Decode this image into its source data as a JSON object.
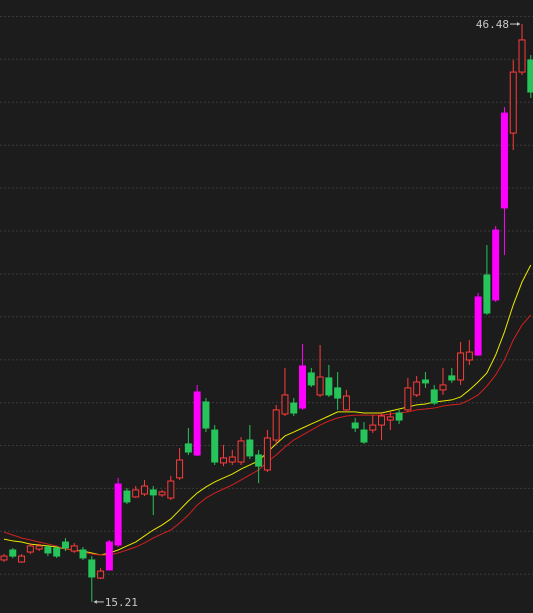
{
  "chart_data": {
    "type": "candlestick",
    "ylim": [
      14.61,
      47.78
    ],
    "hollow_color": "#ff3b3b",
    "open": [
      17.48,
      18.02,
      17.37,
      17.91,
      18.07,
      18.18,
      18.13,
      18.45,
      17.96,
      18.02,
      17.48,
      16.5,
      16.94,
      18.29,
      21.21,
      20.89,
      21.05,
      21.27,
      21.0,
      20.83,
      21.92,
      23.76,
      23.16,
      26.03,
      24.51,
      22.73,
      22.78,
      22.78,
      23.97,
      23.16,
      22.35,
      23.97,
      25.38,
      25.97,
      25.7,
      27.6,
      26.41,
      27.33,
      26.79,
      25.6,
      24.89,
      24.51,
      24.51,
      24.78,
      25.05,
      25.43,
      25.6,
      26.41,
      27.22,
      26.68,
      26.68,
      27.44,
      27.22,
      28.3,
      28.57,
      32.9,
      31.55,
      36.53,
      40.58,
      43.88,
      44.53
    ],
    "high": [
      17.8,
      18.13,
      17.8,
      18.4,
      18.35,
      18.29,
      18.24,
      18.67,
      18.4,
      18.18,
      17.69,
      17.04,
      18.56,
      21.92,
      21.37,
      21.48,
      21.81,
      21.48,
      21.27,
      22.03,
      23.54,
      24.62,
      26.95,
      26.24,
      24.78,
      23.7,
      23.43,
      24.13,
      24.78,
      23.43,
      24.51,
      25.87,
      27.87,
      26.24,
      29.17,
      27.87,
      29.11,
      28.03,
      27.65,
      26.68,
      25.16,
      24.94,
      25.32,
      25.49,
      25.49,
      25.6,
      27.33,
      27.44,
      27.65,
      26.95,
      27.87,
      27.87,
      29.27,
      29.38,
      31.94,
      34.52,
      35.55,
      41.99,
      44.53,
      46.48,
      44.8
    ],
    "low": [
      17.37,
      17.59,
      17.32,
      17.8,
      17.96,
      17.69,
      17.59,
      17.96,
      17.86,
      17.48,
      15.21,
      16.45,
      16.94,
      18.18,
      20.51,
      20.83,
      20.94,
      19.91,
      20.89,
      20.72,
      21.81,
      23.16,
      23.11,
      24.4,
      22.62,
      22.56,
      22.62,
      22.62,
      22.94,
      21.64,
      22.24,
      23.7,
      25.27,
      25.27,
      25.6,
      26.84,
      26.3,
      26.3,
      25.6,
      25.49,
      24.4,
      23.76,
      24.35,
      23.97,
      24.51,
      24.84,
      25.49,
      26.3,
      26.79,
      25.87,
      26.41,
      27.06,
      26.95,
      28.03,
      28.52,
      30.74,
      31.44,
      33.98,
      39.66,
      43.72,
      42.48
    ],
    "close": [
      17.69,
      17.69,
      17.69,
      18.24,
      18.24,
      17.86,
      17.69,
      18.13,
      18.24,
      17.59,
      16.56,
      16.88,
      18.45,
      21.59,
      20.62,
      21.27,
      21.48,
      21.0,
      21.16,
      21.75,
      22.89,
      23.32,
      26.57,
      24.62,
      22.78,
      23.0,
      23.05,
      23.92,
      23.11,
      22.56,
      24.08,
      25.6,
      26.41,
      25.43,
      27.98,
      26.95,
      27.38,
      26.41,
      26.24,
      26.35,
      24.62,
      23.86,
      24.78,
      25.27,
      25.22,
      25.05,
      26.79,
      27.11,
      27.06,
      25.97,
      26.95,
      27.22,
      28.68,
      28.73,
      31.71,
      30.84,
      35.33,
      41.66,
      43.88,
      45.62,
      42.8
    ],
    "colors": [
      "#ff3b3b",
      "#26c45a",
      "#ff3b3b",
      "#ff3b3b",
      "#ff3b3b",
      "#26c45a",
      "#26c45a",
      "#26c45a",
      "#ff3b3b",
      "#26c45a",
      "#26c45a",
      "#ff3b3b",
      "#ff00ff",
      "#ff00ff",
      "#26c45a",
      "#ff3b3b",
      "#ff3b3b",
      "#26c45a",
      "#ff3b3b",
      "#ff3b3b",
      "#ff3b3b",
      "#26c45a",
      "#ff00ff",
      "#26c45a",
      "#26c45a",
      "#ff3b3b",
      "#ff3b3b",
      "#ff3b3b",
      "#26c45a",
      "#26c45a",
      "#ff3b3b",
      "#ff3b3b",
      "#ff3b3b",
      "#26c45a",
      "#ff00ff",
      "#26c45a",
      "#ff3b3b",
      "#26c45a",
      "#26c45a",
      "#ff3b3b",
      "#26c45a",
      "#26c45a",
      "#ff3b3b",
      "#ff3b3b",
      "#ff3b3b",
      "#26c45a",
      "#ff3b3b",
      "#ff3b3b",
      "#26c45a",
      "#26c45a",
      "#ff3b3b",
      "#26c45a",
      "#ff3b3b",
      "#ff3b3b",
      "#ff00ff",
      "#26c45a",
      "#ff00ff",
      "#ff00ff",
      "#ff3b3b",
      "#ff3b3b",
      "#26c45a"
    ],
    "lines": [
      {
        "color": "#e8e800",
        "values": [
          18.61,
          18.51,
          18.45,
          18.34,
          18.29,
          18.24,
          18.18,
          18.07,
          18.02,
          17.96,
          17.86,
          17.75,
          17.86,
          18.02,
          18.24,
          18.45,
          18.78,
          19.1,
          19.37,
          19.7,
          20.18,
          20.67,
          21.1,
          21.43,
          21.7,
          21.92,
          22.13,
          22.4,
          22.62,
          22.84,
          23.32,
          23.76,
          24.19,
          24.4,
          24.62,
          24.84,
          25.05,
          25.27,
          25.49,
          25.49,
          25.49,
          25.43,
          25.43,
          25.43,
          25.54,
          25.65,
          25.76,
          25.87,
          25.92,
          26.03,
          26.08,
          26.14,
          26.3,
          26.68,
          27.11,
          27.6,
          28.57,
          29.82,
          31.28,
          32.52,
          33.44
        ]
      },
      {
        "color": "#d42020",
        "values": [
          18.99,
          18.83,
          18.67,
          18.56,
          18.45,
          18.34,
          18.24,
          18.07,
          18.02,
          17.91,
          17.8,
          17.75,
          17.75,
          17.86,
          18.02,
          18.18,
          18.4,
          18.67,
          18.89,
          19.1,
          19.48,
          19.91,
          20.45,
          20.83,
          21.1,
          21.32,
          21.54,
          21.81,
          22.08,
          22.35,
          22.78,
          23.16,
          23.59,
          23.97,
          24.24,
          24.51,
          24.78,
          25.0,
          25.16,
          25.27,
          25.32,
          25.32,
          25.32,
          25.32,
          25.38,
          25.43,
          25.49,
          25.6,
          25.65,
          25.7,
          25.81,
          25.87,
          25.92,
          26.14,
          26.41,
          26.89,
          27.49,
          28.3,
          29.38,
          30.19,
          30.74
        ]
      }
    ]
  }
}
